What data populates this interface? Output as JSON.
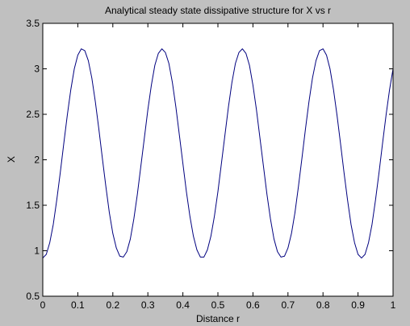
{
  "colors": {
    "figure_background": "#c0c0c0",
    "axes_background": "#ffffff",
    "axis_color": "#000000",
    "line_color": "#00007f"
  },
  "chart_data": {
    "type": "line",
    "title": "Analytical steady state dissipative structure for X vs r",
    "xlabel": "Distance r",
    "ylabel": "X",
    "xlim": [
      0,
      1
    ],
    "ylim": [
      0.5,
      3.5
    ],
    "x_ticks": [
      "0",
      "0.1",
      "0.2",
      "0.3",
      "0.4",
      "0.5",
      "0.6",
      "0.7",
      "0.8",
      "0.9",
      "1"
    ],
    "y_ticks": [
      "0.5",
      "1",
      "1.5",
      "2",
      "2.5",
      "3",
      "3.5"
    ],
    "grid": false,
    "legend": "none",
    "series": [
      {
        "x": [
          0,
          0.01,
          0.02,
          0.03,
          0.04,
          0.05,
          0.06,
          0.07,
          0.08,
          0.09,
          0.1,
          0.11,
          0.12,
          0.13,
          0.14,
          0.15,
          0.16,
          0.17,
          0.18,
          0.19,
          0.2,
          0.21,
          0.22,
          0.23,
          0.24,
          0.25,
          0.26,
          0.27,
          0.28,
          0.29,
          0.3,
          0.31,
          0.32,
          0.33,
          0.34,
          0.35,
          0.36,
          0.37,
          0.38,
          0.39,
          0.4,
          0.41,
          0.42,
          0.43,
          0.44,
          0.45,
          0.46,
          0.47,
          0.48,
          0.49,
          0.5,
          0.51,
          0.52,
          0.53,
          0.54,
          0.55,
          0.56,
          0.57,
          0.58,
          0.59,
          0.6,
          0.61,
          0.62,
          0.63,
          0.64,
          0.65,
          0.66,
          0.67,
          0.68,
          0.69,
          0.7,
          0.71,
          0.72,
          0.73,
          0.74,
          0.75,
          0.76,
          0.77,
          0.78,
          0.79,
          0.8,
          0.81,
          0.82,
          0.83,
          0.84,
          0.85,
          0.86,
          0.87,
          0.88,
          0.89,
          0.9,
          0.91,
          0.92,
          0.93,
          0.94,
          0.95,
          0.96,
          0.97,
          0.98,
          0.99,
          1
        ],
        "y": [
          0.92,
          0.96,
          1.09,
          1.29,
          1.56,
          1.86,
          2.18,
          2.49,
          2.77,
          3.0,
          3.15,
          3.22,
          3.2,
          3.09,
          2.9,
          2.64,
          2.34,
          2.02,
          1.71,
          1.42,
          1.19,
          1.03,
          0.94,
          0.93,
          0.99,
          1.13,
          1.35,
          1.62,
          1.93,
          2.24,
          2.55,
          2.82,
          3.04,
          3.17,
          3.22,
          3.18,
          3.06,
          2.85,
          2.58,
          2.27,
          1.96,
          1.65,
          1.38,
          1.16,
          1.01,
          0.93,
          0.93,
          1.01,
          1.16,
          1.38,
          1.65,
          1.96,
          2.27,
          2.58,
          2.85,
          3.06,
          3.18,
          3.22,
          3.17,
          3.04,
          2.82,
          2.55,
          2.24,
          1.93,
          1.62,
          1.35,
          1.13,
          0.99,
          0.93,
          0.94,
          1.03,
          1.19,
          1.42,
          1.71,
          2.02,
          2.34,
          2.64,
          2.9,
          3.09,
          3.2,
          3.22,
          3.15,
          3.0,
          2.77,
          2.49,
          2.18,
          1.86,
          1.56,
          1.29,
          1.09,
          0.96,
          0.92,
          0.96,
          1.09,
          1.29,
          1.56,
          1.86,
          2.18,
          2.49,
          2.77,
          3.0
        ]
      }
    ]
  }
}
